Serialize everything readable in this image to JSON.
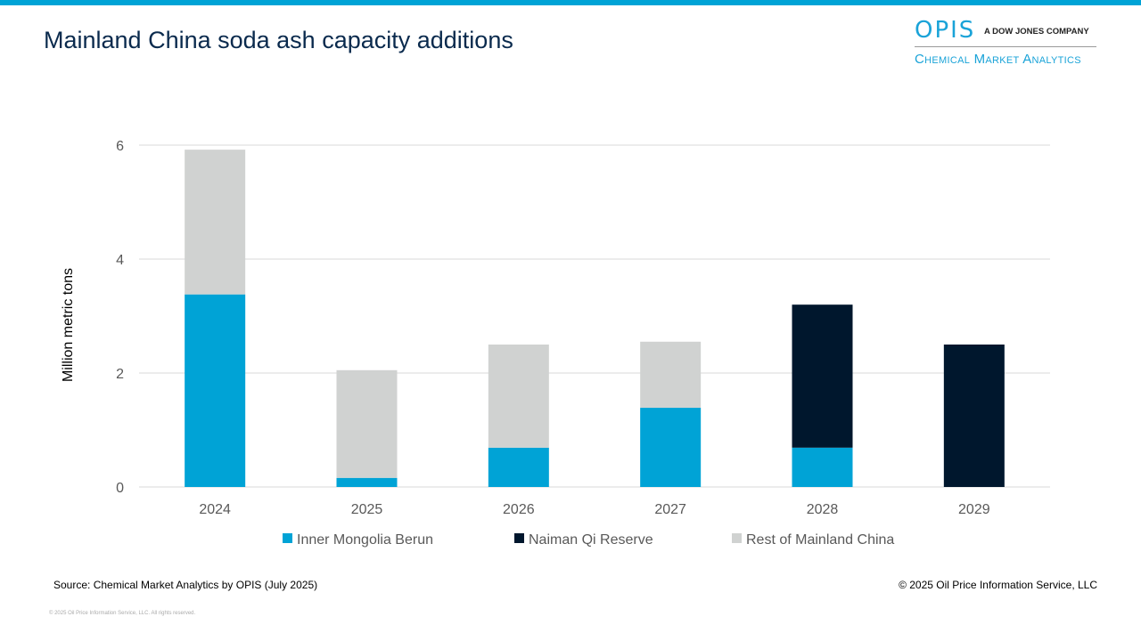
{
  "header": {
    "title": "Mainland China soda ash capacity additions",
    "logo_brand": "OPIS",
    "logo_tagline": "A DOW JONES COMPANY",
    "logo_subtitle": "Chemical Market Analytics"
  },
  "footer": {
    "source": "Source: Chemical Market Analytics by OPIS (July 2025)",
    "copyright": "© 2025 Oil Price Information Service, LLC",
    "fine_print": "© 2025 Oil Price Information Service, LLC. All rights reserved."
  },
  "colors": {
    "accent": "#00a3d6",
    "title": "#0a2a4d"
  },
  "chart_data": {
    "type": "bar",
    "stacked": true,
    "title": "",
    "xlabel": "",
    "ylabel": "Million metric tons",
    "categories": [
      "2024",
      "2025",
      "2026",
      "2027",
      "2028",
      "2029"
    ],
    "ylim": [
      0,
      6
    ],
    "yticks": [
      "0",
      "2",
      "4",
      "6"
    ],
    "grid": true,
    "legend_position": "bottom",
    "series": [
      {
        "name": "Inner Mongolia Berun",
        "color": "#00a3d6",
        "values": [
          3.38,
          0.16,
          0.69,
          1.39,
          0.69,
          0
        ]
      },
      {
        "name": "Naiman Qi Reserve",
        "color": "#00172d",
        "values": [
          0,
          0,
          0,
          0,
          2.51,
          2.5
        ]
      },
      {
        "name": "Rest of Mainland China",
        "color": "#d0d2d1",
        "values": [
          2.54,
          1.89,
          1.81,
          1.16,
          0,
          0
        ]
      }
    ]
  }
}
